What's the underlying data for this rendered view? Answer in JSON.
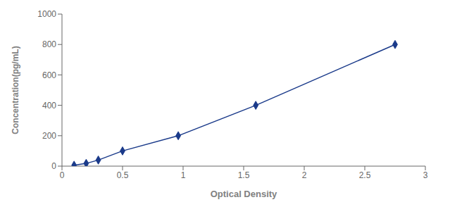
{
  "chart_data": {
    "type": "line",
    "x": [
      0.1,
      0.2,
      0.3,
      0.5,
      0.96,
      1.6,
      2.75
    ],
    "values": [
      6,
      18,
      40,
      100,
      200,
      400,
      800
    ],
    "color": "#1a3a8a",
    "marker": "diamond",
    "line_style": "solid",
    "xlabel": "Optical Density",
    "ylabel": "Concentration(pg/mL)",
    "xlim": [
      0,
      3
    ],
    "ylim": [
      0,
      1000
    ],
    "xticks": [
      0,
      0.5,
      1,
      1.5,
      2,
      2.5,
      3
    ],
    "yticks": [
      0,
      200,
      400,
      600,
      800,
      1000
    ],
    "grid": false
  }
}
